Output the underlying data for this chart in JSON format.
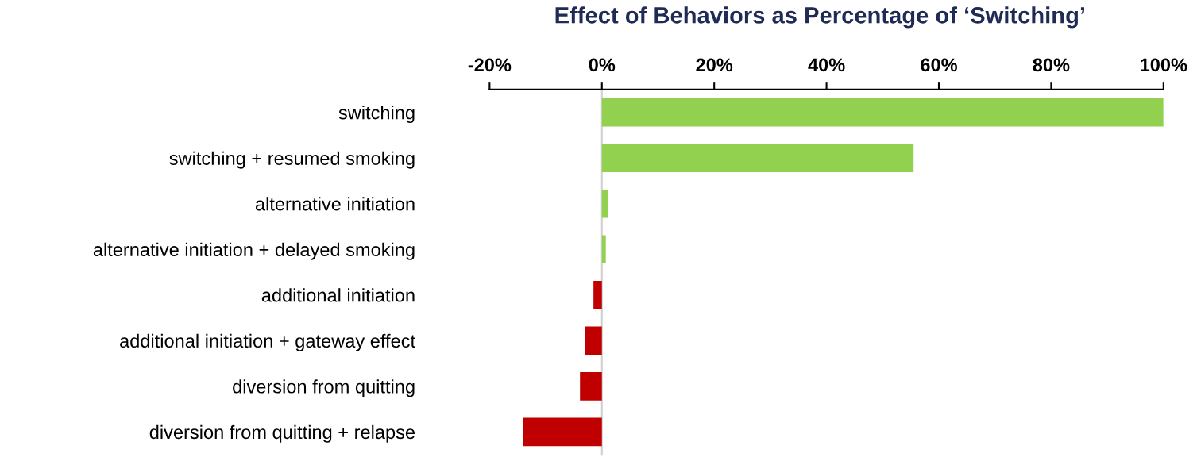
{
  "chart_data": {
    "type": "bar",
    "orientation": "horizontal",
    "title": "Effect of Behaviors as Percentage of ‘Switching’",
    "categories": [
      "switching",
      "switching + resumed smoking",
      "alternative initiation",
      "alternative initiation + delayed smoking",
      "additional initiation",
      "additional initiation + gateway effect",
      "diversion from quitting",
      "diversion from quitting + relapse"
    ],
    "values": [
      100,
      55.5,
      1.1,
      0.7,
      -1.5,
      -3.0,
      -3.9,
      -14.1
    ],
    "colors": [
      "#92d050",
      "#92d050",
      "#92d050",
      "#92d050",
      "#c00000",
      "#c00000",
      "#c00000",
      "#c00000"
    ],
    "xlim": [
      -20,
      100
    ],
    "xticks": [
      {
        "value": -20,
        "label": "-20%"
      },
      {
        "value": 0,
        "label": "0%"
      },
      {
        "value": 20,
        "label": "20%"
      },
      {
        "value": 40,
        "label": "40%"
      },
      {
        "value": 60,
        "label": "60%"
      },
      {
        "value": 80,
        "label": "80%"
      },
      {
        "value": 100,
        "label": "100%"
      }
    ],
    "legend": false
  }
}
